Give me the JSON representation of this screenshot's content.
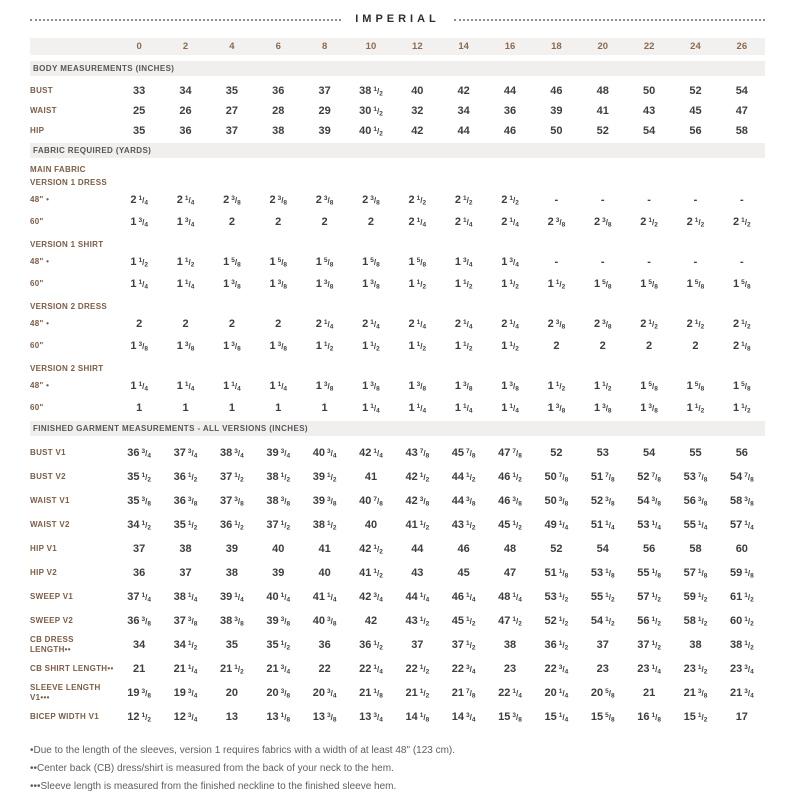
{
  "header": {
    "title": "IMPERIAL"
  },
  "colors": {
    "accent_brown": "#7d5c45",
    "size_number_brown": "#8c6b50",
    "band_bg": "#f1efed",
    "value_text": "#3e3e3e",
    "footnote_text": "#5e5e5e"
  },
  "sizes": [
    "0",
    "2",
    "4",
    "6",
    "8",
    "10",
    "12",
    "14",
    "16",
    "18",
    "20",
    "22",
    "24",
    "26"
  ],
  "sections": [
    {
      "heading": "BODY MEASUREMENTS (INCHES)",
      "rows": [
        {
          "label": "BUST",
          "values": [
            "33",
            "34",
            "35",
            "36",
            "37",
            "38 1/2",
            "40",
            "42",
            "44",
            "46",
            "48",
            "50",
            "52",
            "54"
          ]
        },
        {
          "label": "WAIST",
          "values": [
            "25",
            "26",
            "27",
            "28",
            "29",
            "30 1/2",
            "32",
            "34",
            "36",
            "39",
            "41",
            "43",
            "45",
            "47"
          ]
        },
        {
          "label": "HIP",
          "values": [
            "35",
            "36",
            "37",
            "38",
            "39",
            "40 1/2",
            "42",
            "44",
            "46",
            "50",
            "52",
            "54",
            "56",
            "58"
          ]
        }
      ]
    },
    {
      "heading": "FABRIC REQUIRED (YARDS)",
      "rows": [
        {
          "type": "subhead",
          "label": "MAIN FABRIC"
        },
        {
          "type": "subhead",
          "label": "VERSION 1 DRESS"
        },
        {
          "label": "48\" •",
          "values": [
            "2 1/4",
            "2 1/4",
            "2 3/8",
            "2 3/8",
            "2 3/8",
            "2 3/8",
            "2 1/2",
            "2 1/2",
            "2 1/2",
            "-",
            "-",
            "-",
            "-",
            "-"
          ]
        },
        {
          "label": "60\"",
          "values": [
            "1 3/4",
            "1 3/4",
            "2",
            "2",
            "2",
            "2",
            "2 1/4",
            "2 1/4",
            "2 1/4",
            "2 3/8",
            "2 3/8",
            "2 1/2",
            "2 1/2",
            "2 1/2"
          ]
        },
        {
          "type": "subhead",
          "label": "VERSION 1 SHIRT",
          "gap": true
        },
        {
          "label": "48\" •",
          "values": [
            "1 1/2",
            "1 1/2",
            "1 5/8",
            "1 5/8",
            "1 5/8",
            "1 5/8",
            "1 5/8",
            "1 3/4",
            "1 3/4",
            "-",
            "-",
            "-",
            "-",
            "-"
          ]
        },
        {
          "label": "60\"",
          "values": [
            "1 1/4",
            "1 1/4",
            "1 3/8",
            "1 3/8",
            "1 3/8",
            "1 3/8",
            "1 1/2",
            "1 1/2",
            "1 1/2",
            "1 1/2",
            "1 5/8",
            "1 5/8",
            "1 5/8",
            "1 5/8"
          ]
        },
        {
          "type": "subhead",
          "label": "VERSION 2 DRESS",
          "gap": true
        },
        {
          "label": "48\" •",
          "values": [
            "2",
            "2",
            "2",
            "2",
            "2 1/4",
            "2 1/4",
            "2 1/4",
            "2 1/4",
            "2 1/4",
            "2 3/8",
            "2 3/8",
            "2 1/2",
            "2 1/2",
            "2 1/2"
          ]
        },
        {
          "label": "60\"",
          "values": [
            "1 3/8",
            "1 3/8",
            "1 3/8",
            "1 3/8",
            "1 1/2",
            "1 1/2",
            "1 1/2",
            "1 1/2",
            "1 1/2",
            "2",
            "2",
            "2",
            "2",
            "2 1/8"
          ]
        },
        {
          "type": "subhead",
          "label": "VERSION 2 SHIRT",
          "gap": true
        },
        {
          "label": "48\" •",
          "values": [
            "1 1/4",
            "1 1/4",
            "1 1/4",
            "1 1/4",
            "1 3/8",
            "1 3/8",
            "1 3/8",
            "1 3/8",
            "1 3/8",
            "1 1/2",
            "1 1/2",
            "1 5/8",
            "1 5/8",
            "1 5/8"
          ]
        },
        {
          "label": "60\"",
          "values": [
            "1",
            "1",
            "1",
            "1",
            "1",
            "1 1/4",
            "1 1/4",
            "1 1/4",
            "1 1/4",
            "1 3/8",
            "1 3/8",
            "1 3/8",
            "1 1/2",
            "1 1/2"
          ]
        }
      ]
    },
    {
      "heading": "FINISHED GARMENT MEASUREMENTS  - ALL VERSIONS (INCHES)",
      "rows": [
        {
          "label": "BUST V1",
          "values": [
            "36 3/4",
            "37 3/4",
            "38 3/4",
            "39 3/4",
            "40 3/4",
            "42 1/4",
            "43 7/8",
            "45 7/8",
            "47 7/8",
            "52",
            "53",
            "54",
            "55",
            "56"
          ]
        },
        {
          "label": "BUST V2",
          "values": [
            "35 1/2",
            "36 1/2",
            "37 1/2",
            "38 1/2",
            "39 1/2",
            "41",
            "42 1/2",
            "44 1/2",
            "46 1/2",
            "50 7/8",
            "51 7/8",
            "52 7/8",
            "53 7/8",
            "54 7/8"
          ]
        },
        {
          "label": "WAIST V1",
          "values": [
            "35 3/8",
            "36 3/8",
            "37 3/8",
            "38 3/8",
            "39 3/8",
            "40 7/8",
            "42 3/8",
            "44 3/8",
            "46 3/8",
            "50 3/8",
            "52 3/8",
            "54 3/8",
            "56 3/8",
            "58 3/8"
          ]
        },
        {
          "label": "WAIST V2",
          "values": [
            "34 1/2",
            "35 1/2",
            "36 1/2",
            "37 1/2",
            "38 1/2",
            "40",
            "41 1/2",
            "43 1/2",
            "45 1/2",
            "49 1/4",
            "51 1/4",
            "53 1/4",
            "55 1/4",
            "57 1/4"
          ]
        },
        {
          "label": "HIP V1",
          "values": [
            "37",
            "38",
            "39",
            "40",
            "41",
            "42 1/2",
            "44",
            "46",
            "48",
            "52",
            "54",
            "56",
            "58",
            "60"
          ]
        },
        {
          "label": "HIP V2",
          "values": [
            "36",
            "37",
            "38",
            "39",
            "40",
            "41 1/2",
            "43",
            "45",
            "47",
            "51 1/8",
            "53 1/8",
            "55 1/8",
            "57 1/8",
            "59 1/8"
          ]
        },
        {
          "label": "SWEEP V1",
          "values": [
            "37 1/4",
            "38 1/4",
            "39 1/4",
            "40 1/4",
            "41 1/4",
            "42 3/4",
            "44 1/4",
            "46 1/4",
            "48 1/4",
            "53 1/2",
            "55 1/2",
            "57 1/2",
            "59 1/2",
            "61 1/2"
          ]
        },
        {
          "label": "SWEEP V2",
          "values": [
            "36 3/8",
            "37 3/8",
            "38 3/8",
            "39 3/8",
            "40 3/8",
            "42",
            "43 1/2",
            "45 1/2",
            "47 1/2",
            "52 1/2",
            "54 1/2",
            "56 1/2",
            "58 1/2",
            "60 1/2"
          ]
        },
        {
          "label": "CB DRESS LENGTH••",
          "values": [
            "34",
            "34 1/2",
            "35",
            "35 1/2",
            "36",
            "36 1/2",
            "37",
            "37 1/2",
            "38",
            "36 1/2",
            "37",
            "37 1/2",
            "38",
            "38 1/2"
          ]
        },
        {
          "label": "CB SHIRT LENGTH••",
          "values": [
            "21",
            "21 1/4",
            "21 1/2",
            "21 3/4",
            "22",
            "22 1/4",
            "22 1/2",
            "22 3/4",
            "23",
            "22 3/4",
            "23",
            "23 1/4",
            "23 1/2",
            "23 3/4"
          ]
        },
        {
          "label": "SLEEVE LENGTH V1•••",
          "values": [
            "19 3/8",
            "19 3/4",
            "20",
            "20 3/8",
            "20 3/4",
            "21 1/8",
            "21 1/2",
            "21 7/8",
            "22 1/4",
            "20 1/4",
            "20 5/8",
            "21",
            "21 3/8",
            "21 3/4"
          ]
        },
        {
          "label": "BICEP WIDTH V1",
          "values": [
            "12 1/2",
            "12 3/4",
            "13",
            "13 1/8",
            "13 3/8",
            "13 3/4",
            "14 1/8",
            "14 3/4",
            "15 3/8",
            "15 1/4",
            "15 5/8",
            "16 1/8",
            "15 1/2",
            "17"
          ]
        }
      ]
    }
  ],
  "footnotes": [
    "•Due to the length of the sleeves, version 1 requires fabrics with a width of at least 48\" (123 cm).",
    "••Center back (CB) dress/shirt is measured from the back of your neck to the hem.",
    "•••Sleeve length is measured from the finished neckline to the finished sleeve hem."
  ]
}
